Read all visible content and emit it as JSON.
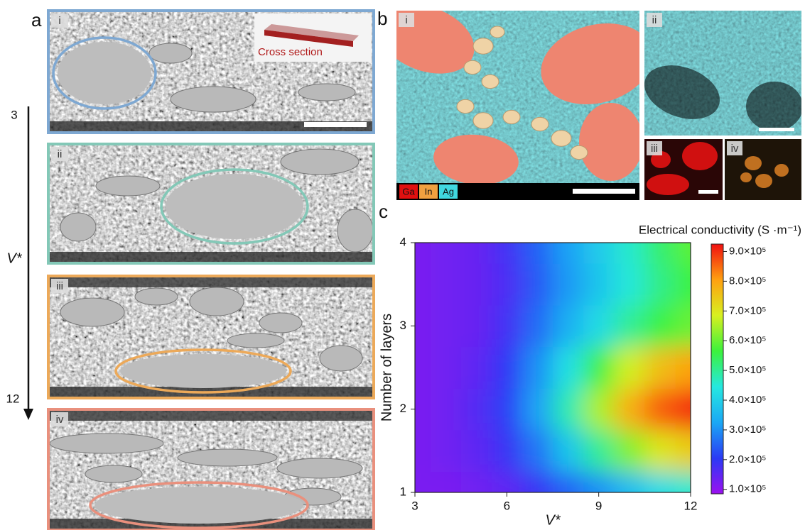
{
  "panel_a": {
    "letter": "a",
    "arrow_start": "3",
    "arrow_end": "12",
    "arrow_label": "V*",
    "images": [
      {
        "label": "i",
        "inset_text": "Cross section"
      },
      {
        "label": "ii"
      },
      {
        "label": "iii"
      },
      {
        "label": "iv"
      }
    ]
  },
  "panel_b": {
    "letter": "b",
    "images": [
      {
        "label": "i"
      },
      {
        "label": "ii"
      },
      {
        "label": "iii"
      },
      {
        "label": "iv"
      }
    ],
    "legend": [
      "Ga",
      "In",
      "Ag"
    ]
  },
  "chart_data": {
    "type": "heatmap",
    "panel_label": "c",
    "x": [
      3,
      4,
      5,
      6,
      7,
      8,
      9,
      10,
      11,
      12
    ],
    "y": [
      1,
      1.5,
      2,
      2.5,
      3,
      3.5,
      4
    ],
    "z": [
      [
        120000,
        120000,
        130000,
        150000,
        190000,
        250000,
        300000,
        360000,
        420000,
        460000
      ],
      [
        120000,
        130000,
        150000,
        190000,
        270000,
        380000,
        500000,
        620000,
        700000,
        740000
      ],
      [
        120000,
        130000,
        160000,
        210000,
        320000,
        480000,
        650000,
        780000,
        860000,
        900000
      ],
      [
        120000,
        130000,
        150000,
        200000,
        300000,
        430000,
        560000,
        680000,
        760000,
        800000
      ],
      [
        120000,
        130000,
        140000,
        180000,
        260000,
        340000,
        420000,
        500000,
        560000,
        600000
      ],
      [
        120000,
        130000,
        140000,
        170000,
        240000,
        310000,
        380000,
        450000,
        510000,
        560000
      ],
      [
        120000,
        130000,
        140000,
        180000,
        250000,
        320000,
        390000,
        460000,
        530000,
        590000
      ]
    ],
    "xlim": [
      3,
      12
    ],
    "ylim": [
      1,
      4
    ],
    "xticks": [
      3,
      6,
      9,
      12
    ],
    "yticks": [
      1,
      2,
      3,
      4
    ],
    "xlabel": "V*",
    "ylabel": "Number of layers",
    "colorbar_title": "Electrical conductivity (S ·m⁻¹)",
    "colorbar_lim": [
      85000,
      925000
    ],
    "colorbar_ticks": [
      {
        "value": 100000,
        "label": "1.0×10⁵"
      },
      {
        "value": 200000,
        "label": "2.0×10⁵"
      },
      {
        "value": 300000,
        "label": "3.0×10⁵"
      },
      {
        "value": 400000,
        "label": "4.0×10⁵"
      },
      {
        "value": 500000,
        "label": "5.0×10⁵"
      },
      {
        "value": 600000,
        "label": "6.0×10⁵"
      },
      {
        "value": 700000,
        "label": "7.0×10⁵"
      },
      {
        "value": 800000,
        "label": "8.0×10⁵"
      },
      {
        "value": 900000,
        "label": "9.0×10⁵"
      }
    ],
    "colormap": [
      "#9b10f0",
      "#2a3af5",
      "#1aa8f5",
      "#25e8e0",
      "#3cf23c",
      "#d8f020",
      "#ffa010",
      "#f01010"
    ]
  }
}
